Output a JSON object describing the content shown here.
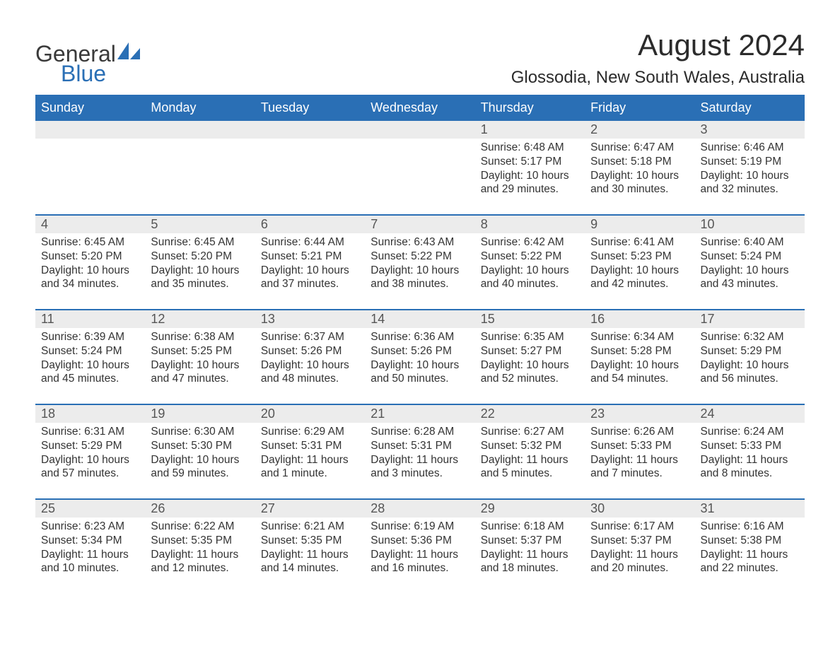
{
  "brand": {
    "general": "General",
    "blue": "Blue"
  },
  "header": {
    "month_title": "August 2024",
    "location": "Glossodia, New South Wales, Australia"
  },
  "colors": {
    "header_bg": "#2a6fb5",
    "header_fg": "#ffffff",
    "daynum_bg": "#ececec",
    "text": "#333333",
    "rule": "#2a6fb5"
  },
  "day_names": [
    "Sunday",
    "Monday",
    "Tuesday",
    "Wednesday",
    "Thursday",
    "Friday",
    "Saturday"
  ],
  "weeks": [
    [
      null,
      null,
      null,
      null,
      {
        "n": "1",
        "sunrise": "Sunrise: 6:48 AM",
        "sunset": "Sunset: 5:17 PM",
        "daylight": "Daylight: 10 hours and 29 minutes."
      },
      {
        "n": "2",
        "sunrise": "Sunrise: 6:47 AM",
        "sunset": "Sunset: 5:18 PM",
        "daylight": "Daylight: 10 hours and 30 minutes."
      },
      {
        "n": "3",
        "sunrise": "Sunrise: 6:46 AM",
        "sunset": "Sunset: 5:19 PM",
        "daylight": "Daylight: 10 hours and 32 minutes."
      }
    ],
    [
      {
        "n": "4",
        "sunrise": "Sunrise: 6:45 AM",
        "sunset": "Sunset: 5:20 PM",
        "daylight": "Daylight: 10 hours and 34 minutes."
      },
      {
        "n": "5",
        "sunrise": "Sunrise: 6:45 AM",
        "sunset": "Sunset: 5:20 PM",
        "daylight": "Daylight: 10 hours and 35 minutes."
      },
      {
        "n": "6",
        "sunrise": "Sunrise: 6:44 AM",
        "sunset": "Sunset: 5:21 PM",
        "daylight": "Daylight: 10 hours and 37 minutes."
      },
      {
        "n": "7",
        "sunrise": "Sunrise: 6:43 AM",
        "sunset": "Sunset: 5:22 PM",
        "daylight": "Daylight: 10 hours and 38 minutes."
      },
      {
        "n": "8",
        "sunrise": "Sunrise: 6:42 AM",
        "sunset": "Sunset: 5:22 PM",
        "daylight": "Daylight: 10 hours and 40 minutes."
      },
      {
        "n": "9",
        "sunrise": "Sunrise: 6:41 AM",
        "sunset": "Sunset: 5:23 PM",
        "daylight": "Daylight: 10 hours and 42 minutes."
      },
      {
        "n": "10",
        "sunrise": "Sunrise: 6:40 AM",
        "sunset": "Sunset: 5:24 PM",
        "daylight": "Daylight: 10 hours and 43 minutes."
      }
    ],
    [
      {
        "n": "11",
        "sunrise": "Sunrise: 6:39 AM",
        "sunset": "Sunset: 5:24 PM",
        "daylight": "Daylight: 10 hours and 45 minutes."
      },
      {
        "n": "12",
        "sunrise": "Sunrise: 6:38 AM",
        "sunset": "Sunset: 5:25 PM",
        "daylight": "Daylight: 10 hours and 47 minutes."
      },
      {
        "n": "13",
        "sunrise": "Sunrise: 6:37 AM",
        "sunset": "Sunset: 5:26 PM",
        "daylight": "Daylight: 10 hours and 48 minutes."
      },
      {
        "n": "14",
        "sunrise": "Sunrise: 6:36 AM",
        "sunset": "Sunset: 5:26 PM",
        "daylight": "Daylight: 10 hours and 50 minutes."
      },
      {
        "n": "15",
        "sunrise": "Sunrise: 6:35 AM",
        "sunset": "Sunset: 5:27 PM",
        "daylight": "Daylight: 10 hours and 52 minutes."
      },
      {
        "n": "16",
        "sunrise": "Sunrise: 6:34 AM",
        "sunset": "Sunset: 5:28 PM",
        "daylight": "Daylight: 10 hours and 54 minutes."
      },
      {
        "n": "17",
        "sunrise": "Sunrise: 6:32 AM",
        "sunset": "Sunset: 5:29 PM",
        "daylight": "Daylight: 10 hours and 56 minutes."
      }
    ],
    [
      {
        "n": "18",
        "sunrise": "Sunrise: 6:31 AM",
        "sunset": "Sunset: 5:29 PM",
        "daylight": "Daylight: 10 hours and 57 minutes."
      },
      {
        "n": "19",
        "sunrise": "Sunrise: 6:30 AM",
        "sunset": "Sunset: 5:30 PM",
        "daylight": "Daylight: 10 hours and 59 minutes."
      },
      {
        "n": "20",
        "sunrise": "Sunrise: 6:29 AM",
        "sunset": "Sunset: 5:31 PM",
        "daylight": "Daylight: 11 hours and 1 minute."
      },
      {
        "n": "21",
        "sunrise": "Sunrise: 6:28 AM",
        "sunset": "Sunset: 5:31 PM",
        "daylight": "Daylight: 11 hours and 3 minutes."
      },
      {
        "n": "22",
        "sunrise": "Sunrise: 6:27 AM",
        "sunset": "Sunset: 5:32 PM",
        "daylight": "Daylight: 11 hours and 5 minutes."
      },
      {
        "n": "23",
        "sunrise": "Sunrise: 6:26 AM",
        "sunset": "Sunset: 5:33 PM",
        "daylight": "Daylight: 11 hours and 7 minutes."
      },
      {
        "n": "24",
        "sunrise": "Sunrise: 6:24 AM",
        "sunset": "Sunset: 5:33 PM",
        "daylight": "Daylight: 11 hours and 8 minutes."
      }
    ],
    [
      {
        "n": "25",
        "sunrise": "Sunrise: 6:23 AM",
        "sunset": "Sunset: 5:34 PM",
        "daylight": "Daylight: 11 hours and 10 minutes."
      },
      {
        "n": "26",
        "sunrise": "Sunrise: 6:22 AM",
        "sunset": "Sunset: 5:35 PM",
        "daylight": "Daylight: 11 hours and 12 minutes."
      },
      {
        "n": "27",
        "sunrise": "Sunrise: 6:21 AM",
        "sunset": "Sunset: 5:35 PM",
        "daylight": "Daylight: 11 hours and 14 minutes."
      },
      {
        "n": "28",
        "sunrise": "Sunrise: 6:19 AM",
        "sunset": "Sunset: 5:36 PM",
        "daylight": "Daylight: 11 hours and 16 minutes."
      },
      {
        "n": "29",
        "sunrise": "Sunrise: 6:18 AM",
        "sunset": "Sunset: 5:37 PM",
        "daylight": "Daylight: 11 hours and 18 minutes."
      },
      {
        "n": "30",
        "sunrise": "Sunrise: 6:17 AM",
        "sunset": "Sunset: 5:37 PM",
        "daylight": "Daylight: 11 hours and 20 minutes."
      },
      {
        "n": "31",
        "sunrise": "Sunrise: 6:16 AM",
        "sunset": "Sunset: 5:38 PM",
        "daylight": "Daylight: 11 hours and 22 minutes."
      }
    ]
  ]
}
